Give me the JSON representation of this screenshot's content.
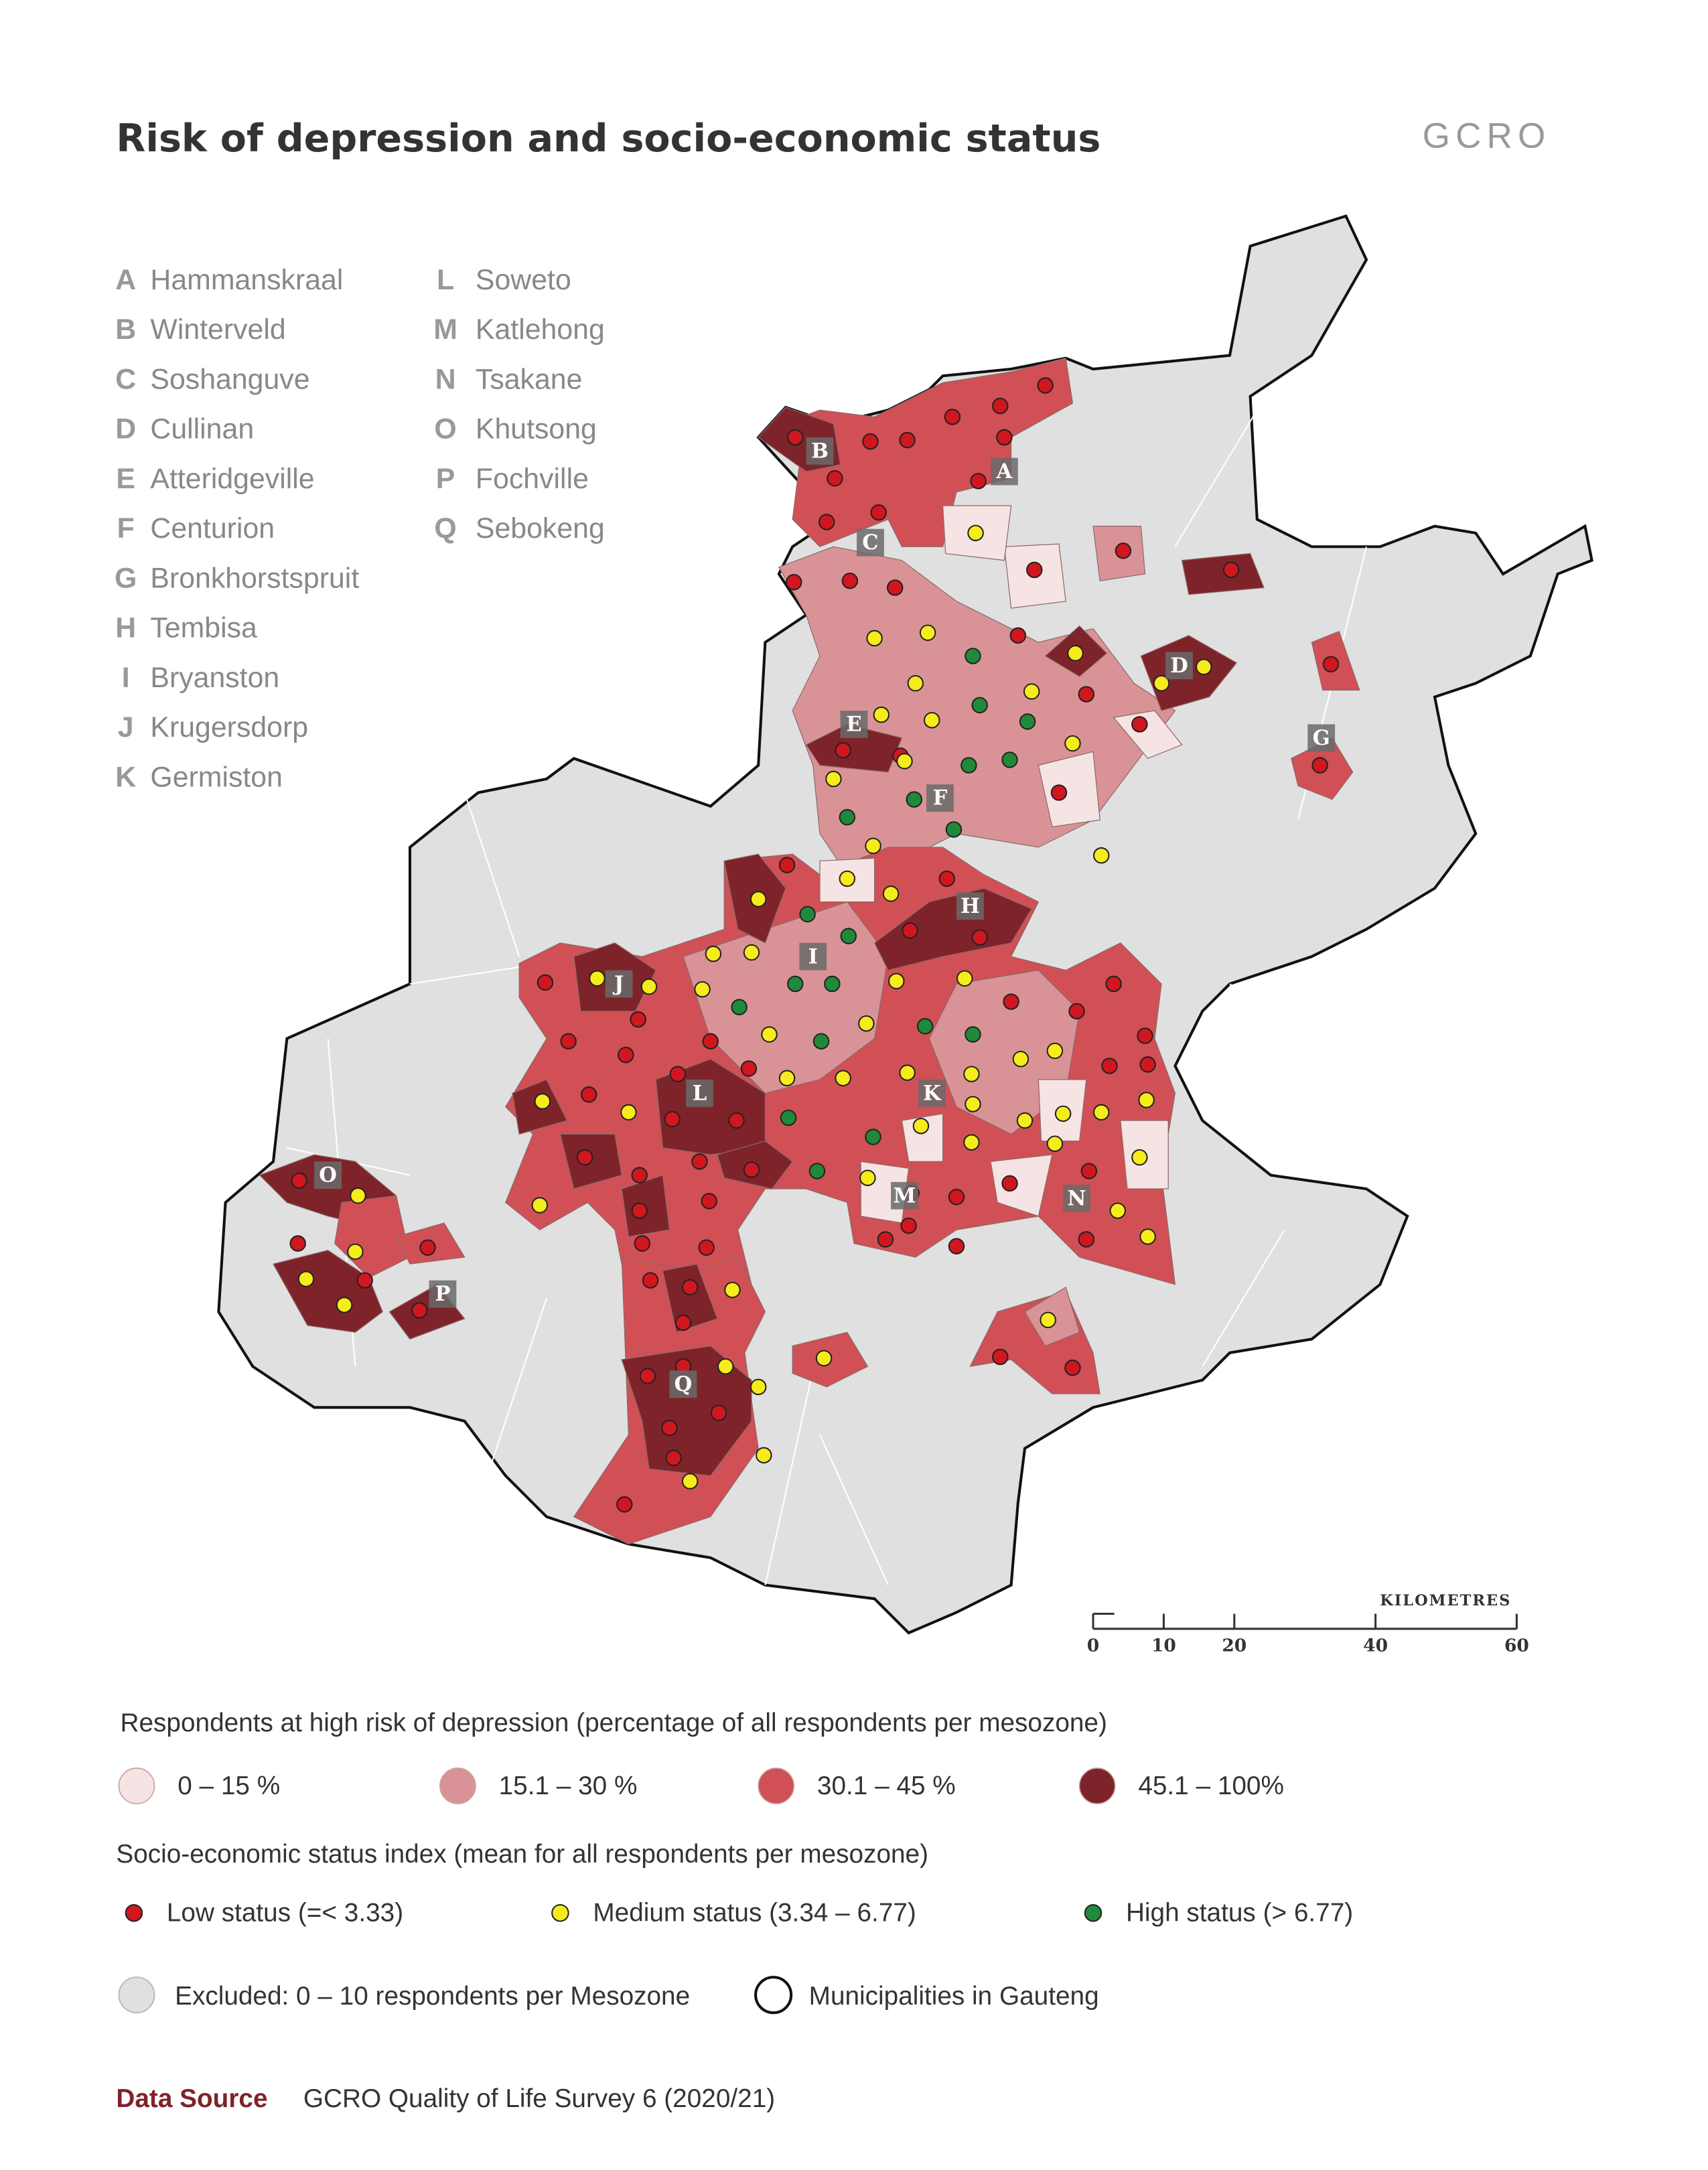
{
  "header": {
    "title": "Risk of depression and socio-economic status",
    "logo": "GCRO"
  },
  "places": [
    {
      "letter": "A",
      "name": "Hammanskraal"
    },
    {
      "letter": "B",
      "name": "Winterveld"
    },
    {
      "letter": "C",
      "name": "Soshanguve"
    },
    {
      "letter": "D",
      "name": "Cullinan"
    },
    {
      "letter": "E",
      "name": "Atteridgeville"
    },
    {
      "letter": "F",
      "name": "Centurion"
    },
    {
      "letter": "G",
      "name": "Bronkhorstspruit"
    },
    {
      "letter": "H",
      "name": "Tembisa"
    },
    {
      "letter": "I",
      "name": "Bryanston"
    },
    {
      "letter": "J",
      "name": "Krugersdorp"
    },
    {
      "letter": "K",
      "name": "Germiston"
    },
    {
      "letter": "L",
      "name": "Soweto"
    },
    {
      "letter": "M",
      "name": "Katlehong"
    },
    {
      "letter": "N",
      "name": "Tsakane"
    },
    {
      "letter": "O",
      "name": "Khutsong"
    },
    {
      "letter": "P",
      "name": "Fochville"
    },
    {
      "letter": "Q",
      "name": "Sebokeng"
    }
  ],
  "scale": {
    "label": "KILOMETRES",
    "range": [
      0,
      60
    ],
    "ticks": [
      0,
      10,
      20,
      40,
      60
    ]
  },
  "legend": {
    "risk_title": "Respondents at high risk of depression (percentage of all respondents per mesozone)",
    "risk_items": [
      "0 – 15 %",
      "15.1 – 30 %",
      "30.1 – 45 %",
      "45.1 – 100%"
    ],
    "status_title": "Socio-economic status index (mean for all respondents per mesozone)",
    "status_items": [
      "Low status (=< 3.33)",
      "Medium status (3.34 – 6.77)",
      "High status (> 6.77)"
    ],
    "other_items": [
      "Excluded: 0 – 10 respondents per Mesozone",
      "Municipalities in Gauteng"
    ]
  },
  "source": {
    "label": "Data Source",
    "text": "GCRO Quality of Life Survey 6 (2020/21)"
  }
}
